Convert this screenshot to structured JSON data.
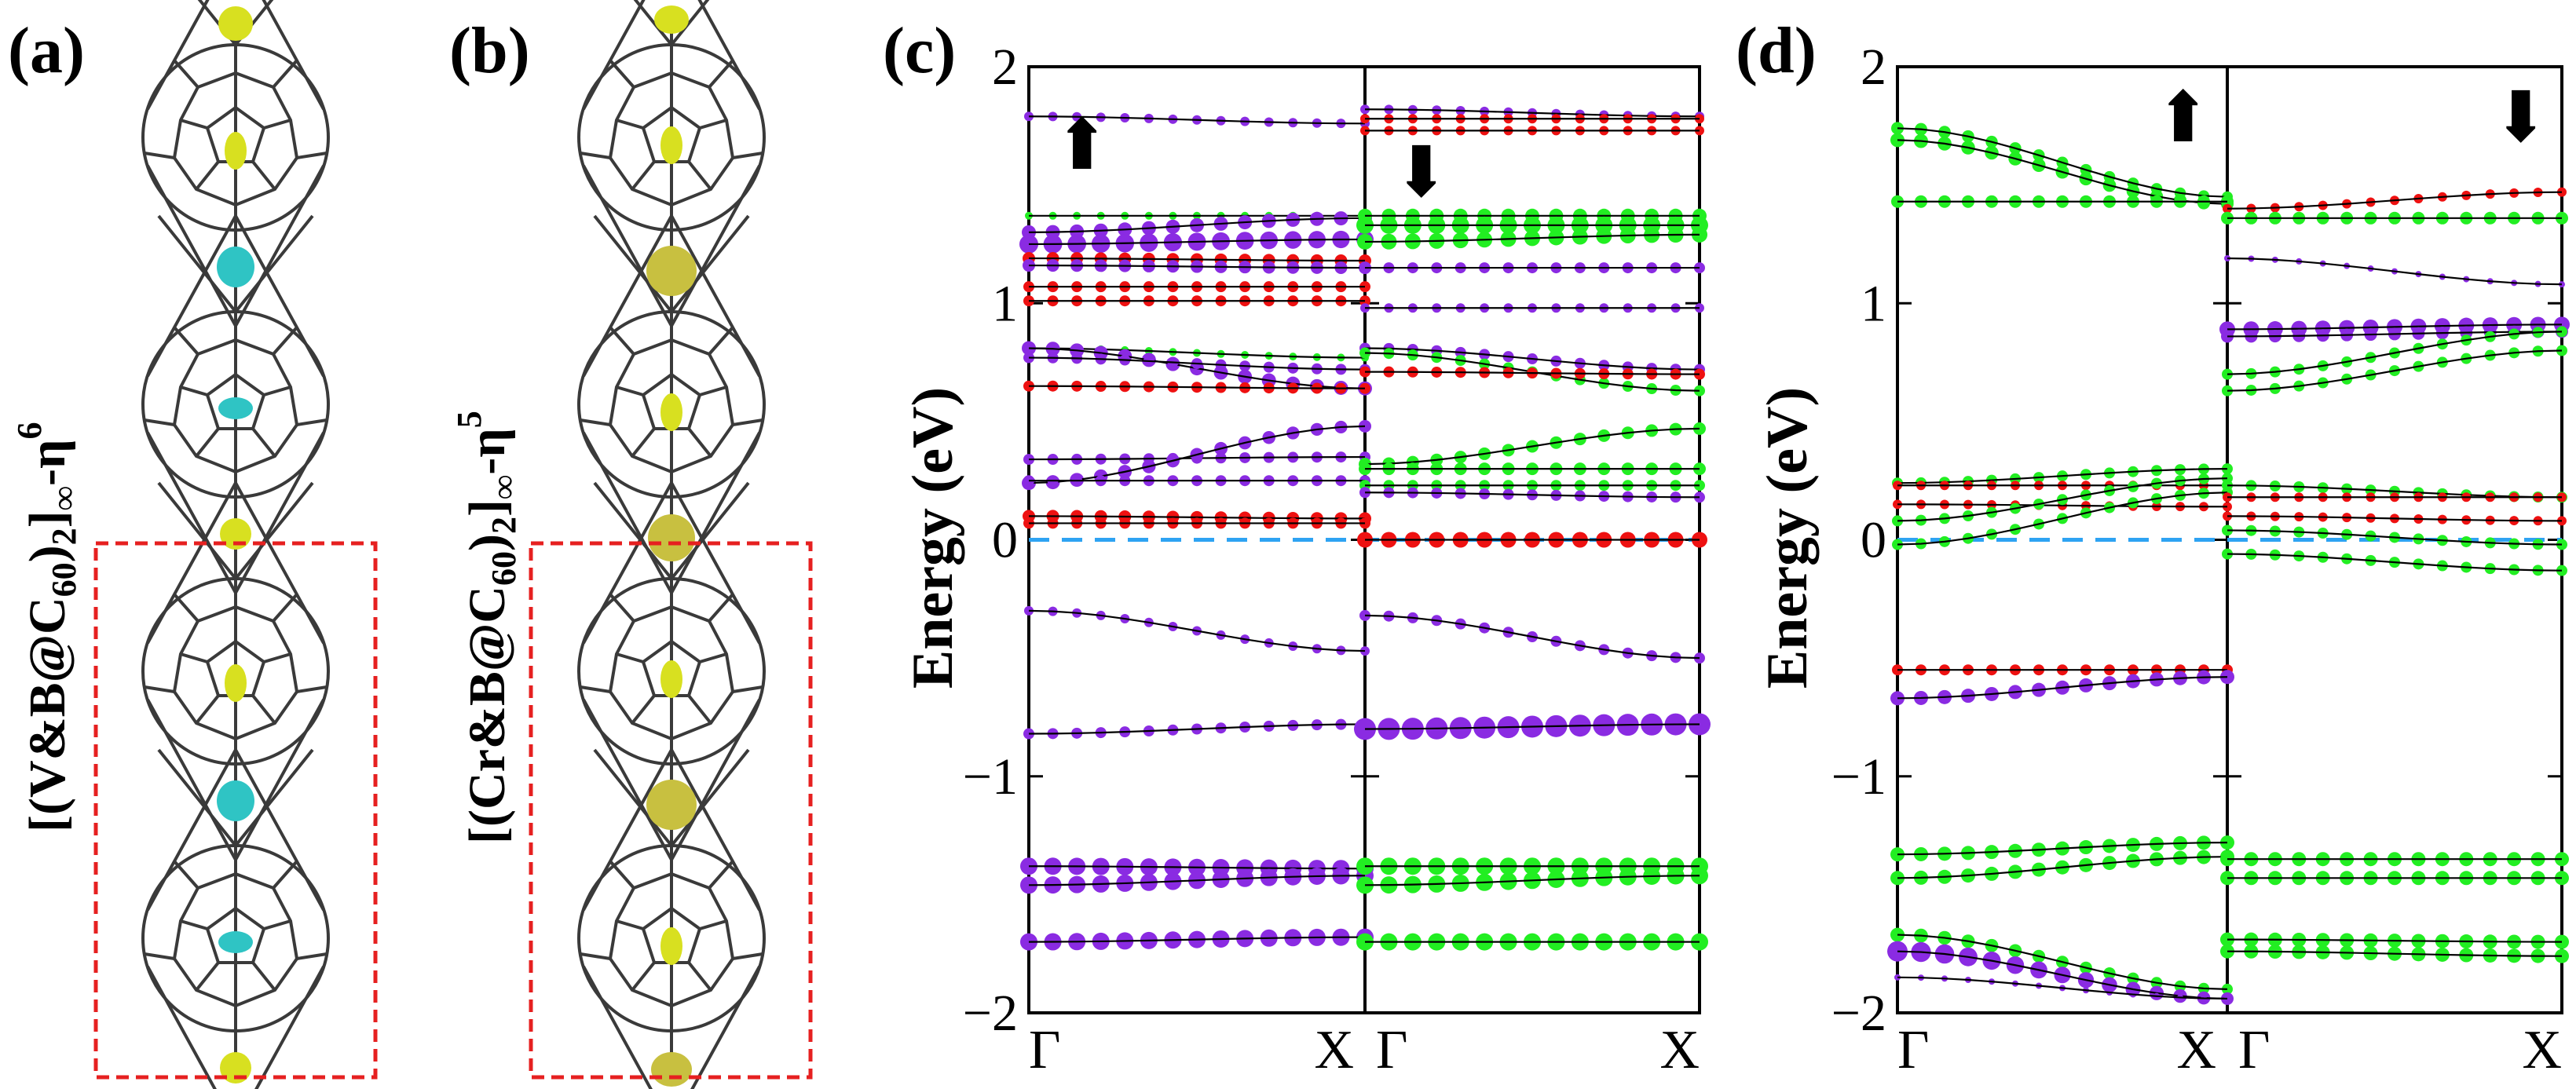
{
  "panels": {
    "a": {
      "label": "(a)",
      "formula_main": "[(V&B@C",
      "formula_sub": "60",
      "formula_close": ")",
      "formula_sub2": "2",
      "formula_end": "]",
      "formula_inf": "∞",
      "formula_eta": "-η",
      "formula_sup": "6"
    },
    "b": {
      "label": "(b)",
      "formula_main": "[(Cr&B@C",
      "formula_sub": "60",
      "formula_close": ")",
      "formula_sub2": "2",
      "formula_end": "]",
      "formula_inf": "∞",
      "formula_eta": "-η",
      "formula_sup": "5"
    },
    "c": {
      "label": "(c)",
      "spin_up": "⬆",
      "spin_down": "⬇"
    },
    "d": {
      "label": "(d)",
      "spin_up": "⬆",
      "spin_down": "⬇"
    }
  },
  "colors": {
    "purple": "#8a2be2",
    "green": "#22ee22",
    "red": "#ee1111",
    "fermi": "#2ea3f2",
    "cyan": "#2fc4c4",
    "yellow": "#d8e020",
    "box": "#e62020"
  },
  "chart_data": [
    {
      "type": "line",
      "panel": "c",
      "ylabel": "Energy (eV)",
      "xlabel": "",
      "ylim": [
        -2,
        2
      ],
      "yticks": [
        -2,
        -1,
        0,
        1,
        2
      ],
      "ytick_labels": [
        "−2",
        "−1",
        "0",
        "1",
        "2"
      ],
      "kpoint_labels": [
        "Γ",
        "X",
        "Γ",
        "X"
      ],
      "fermi_level": 0,
      "subpanels": [
        {
          "spin": "up",
          "bands": [
            {
              "y": [
                1.79,
                1.76
              ],
              "color": "purple",
              "w": [
                6,
                6
              ]
            },
            {
              "y": [
                1.37,
                1.37
              ],
              "color": "green",
              "w": [
                5,
                5
              ]
            },
            {
              "y": [
                1.3,
                1.36
              ],
              "color": "purple",
              "w": [
                9,
                9
              ]
            },
            {
              "y": [
                1.25,
                1.27
              ],
              "color": "purple",
              "w": [
                12,
                11
              ]
            },
            {
              "y": [
                1.19,
                1.18
              ],
              "color": "red",
              "w": [
                8,
                8
              ]
            },
            {
              "y": [
                1.16,
                1.15
              ],
              "color": "purple",
              "w": [
                8,
                8
              ]
            },
            {
              "y": [
                1.07,
                1.07
              ],
              "color": "red",
              "w": [
                7,
                7
              ]
            },
            {
              "y": [
                1.01,
                1.01
              ],
              "color": "red",
              "w": [
                7,
                7
              ]
            },
            {
              "y": [
                0.81,
                0.77
              ],
              "color": "green",
              "w": [
                5,
                5
              ]
            },
            {
              "y": [
                0.81,
                0.64
              ],
              "color": "purple",
              "w": [
                9,
                9
              ]
            },
            {
              "y": [
                0.77,
                0.72
              ],
              "color": "purple",
              "w": [
                7,
                7
              ]
            },
            {
              "y": [
                0.65,
                0.64
              ],
              "color": "red",
              "w": [
                7,
                7
              ]
            },
            {
              "y": [
                0.34,
                0.35
              ],
              "color": "purple",
              "w": [
                7,
                7
              ]
            },
            {
              "y": [
                0.24,
                0.48
              ],
              "color": "purple",
              "w": [
                9,
                8
              ]
            },
            {
              "y": [
                0.25,
                0.25
              ],
              "color": "purple",
              "w": [
                7,
                7
              ]
            },
            {
              "y": [
                0.1,
                0.09
              ],
              "color": "red",
              "w": [
                8,
                8
              ]
            },
            {
              "y": [
                0.07,
                0.07
              ],
              "color": "red",
              "w": [
                7,
                7
              ]
            },
            {
              "y": [
                -0.3,
                -0.47
              ],
              "color": "purple",
              "w": [
                6,
                6
              ]
            },
            {
              "y": [
                -0.82,
                -0.78
              ],
              "color": "purple",
              "w": [
                7,
                7
              ]
            },
            {
              "y": [
                -1.38,
                -1.39
              ],
              "color": "purple",
              "w": [
                11,
                11
              ]
            },
            {
              "y": [
                -1.46,
                -1.42
              ],
              "color": "purple",
              "w": [
                11,
                11
              ]
            },
            {
              "y": [
                -1.7,
                -1.68
              ],
              "color": "purple",
              "w": [
                11,
                11
              ]
            }
          ]
        },
        {
          "spin": "down",
          "bands": [
            {
              "y": [
                1.82,
                1.79
              ],
              "color": "purple",
              "w": [
                6,
                6
              ]
            },
            {
              "y": [
                1.78,
                1.78
              ],
              "color": "red",
              "w": [
                6,
                6
              ]
            },
            {
              "y": [
                1.73,
                1.73
              ],
              "color": "red",
              "w": [
                6,
                6
              ]
            },
            {
              "y": [
                1.37,
                1.37
              ],
              "color": "green",
              "w": [
                9,
                9
              ]
            },
            {
              "y": [
                1.33,
                1.33
              ],
              "color": "green",
              "w": [
                11,
                11
              ]
            },
            {
              "y": [
                1.26,
                1.29
              ],
              "color": "green",
              "w": [
                10,
                10
              ]
            },
            {
              "y": [
                1.15,
                1.15
              ],
              "color": "purple",
              "w": [
                7,
                7
              ]
            },
            {
              "y": [
                0.98,
                0.98
              ],
              "color": "purple",
              "w": [
                6,
                6
              ]
            },
            {
              "y": [
                0.81,
                0.72
              ],
              "color": "purple",
              "w": [
                7,
                7
              ]
            },
            {
              "y": [
                0.79,
                0.63
              ],
              "color": "green",
              "w": [
                7,
                7
              ]
            },
            {
              "y": [
                0.71,
                0.7
              ],
              "color": "red",
              "w": [
                7,
                7
              ]
            },
            {
              "y": [
                0.32,
                0.47
              ],
              "color": "green",
              "w": [
                8,
                8
              ]
            },
            {
              "y": [
                0.3,
                0.3
              ],
              "color": "green",
              "w": [
                8,
                8
              ]
            },
            {
              "y": [
                0.23,
                0.23
              ],
              "color": "green",
              "w": [
                7,
                7
              ]
            },
            {
              "y": [
                0.2,
                0.18
              ],
              "color": "purple",
              "w": [
                7,
                7
              ]
            },
            {
              "y": [
                0.0,
                0.0
              ],
              "color": "red",
              "w": [
                10,
                10
              ]
            },
            {
              "y": [
                -0.32,
                -0.5
              ],
              "color": "purple",
              "w": [
                7,
                7
              ]
            },
            {
              "y": [
                -0.8,
                -0.78
              ],
              "color": "purple",
              "w": [
                14,
                14
              ]
            },
            {
              "y": [
                -1.38,
                -1.38
              ],
              "color": "green",
              "w": [
                11,
                11
              ]
            },
            {
              "y": [
                -1.46,
                -1.42
              ],
              "color": "green",
              "w": [
                11,
                11
              ]
            },
            {
              "y": [
                -1.7,
                -1.7
              ],
              "color": "green",
              "w": [
                11,
                11
              ]
            }
          ]
        }
      ]
    },
    {
      "type": "line",
      "panel": "d",
      "ylabel": "Energy (eV)",
      "xlabel": "",
      "ylim": [
        -2,
        2
      ],
      "yticks": [
        -2,
        -1,
        0,
        1,
        2
      ],
      "ytick_labels": [
        "−2",
        "−1",
        "0",
        "1",
        "2"
      ],
      "kpoint_labels": [
        "Γ",
        "X",
        "Γ",
        "X"
      ],
      "fermi_level": 0,
      "subpanels": [
        {
          "spin": "up",
          "bands": [
            {
              "y": [
                1.74,
                1.45
              ],
              "color": "green",
              "w": [
                8,
                7
              ]
            },
            {
              "y": [
                1.69,
                1.42
              ],
              "color": "green",
              "w": [
                9,
                8
              ]
            },
            {
              "y": [
                1.43,
                1.43
              ],
              "color": "green",
              "w": [
                8,
                8
              ]
            },
            {
              "y": [
                0.24,
                0.3
              ],
              "color": "green",
              "w": [
                7,
                7
              ]
            },
            {
              "y": [
                0.23,
                0.23
              ],
              "color": "red",
              "w": [
                6,
                6
              ]
            },
            {
              "y": [
                0.15,
                0.14
              ],
              "color": "red",
              "w": [
                6,
                6
              ]
            },
            {
              "y": [
                0.08,
                0.26
              ],
              "color": "green",
              "w": [
                7,
                7
              ]
            },
            {
              "y": [
                -0.02,
                0.2
              ],
              "color": "green",
              "w": [
                7,
                7
              ]
            },
            {
              "y": [
                -0.55,
                -0.55
              ],
              "color": "red",
              "w": [
                7,
                7
              ]
            },
            {
              "y": [
                -0.67,
                -0.58
              ],
              "color": "purple",
              "w": [
                9,
                9
              ]
            },
            {
              "y": [
                -1.33,
                -1.28
              ],
              "color": "green",
              "w": [
                9,
                9
              ]
            },
            {
              "y": [
                -1.43,
                -1.34
              ],
              "color": "green",
              "w": [
                9,
                9
              ]
            },
            {
              "y": [
                -1.67,
                -1.9
              ],
              "color": "green",
              "w": [
                9,
                7
              ]
            },
            {
              "y": [
                -1.74,
                -1.94
              ],
              "color": "purple",
              "w": [
                13,
                8
              ]
            },
            {
              "y": [
                -1.85,
                -1.94
              ],
              "color": "purple",
              "w": [
                4,
                4
              ]
            }
          ]
        },
        {
          "spin": "down",
          "bands": [
            {
              "y": [
                1.4,
                1.47
              ],
              "color": "red",
              "w": [
                6,
                6
              ]
            },
            {
              "y": [
                1.36,
                1.36
              ],
              "color": "green",
              "w": [
                8,
                8
              ]
            },
            {
              "y": [
                1.19,
                1.08
              ],
              "color": "purple",
              "w": [
                4,
                4
              ]
            },
            {
              "y": [
                0.89,
                0.91
              ],
              "color": "purple",
              "w": [
                10,
                10
              ]
            },
            {
              "y": [
                0.86,
                0.88
              ],
              "color": "purple",
              "w": [
                8,
                8
              ]
            },
            {
              "y": [
                0.7,
                0.88
              ],
              "color": "green",
              "w": [
                7,
                7
              ]
            },
            {
              "y": [
                0.63,
                0.8
              ],
              "color": "green",
              "w": [
                7,
                7
              ]
            },
            {
              "y": [
                0.23,
                0.18
              ],
              "color": "green",
              "w": [
                7,
                7
              ]
            },
            {
              "y": [
                0.18,
                0.18
              ],
              "color": "red",
              "w": [
                6,
                6
              ]
            },
            {
              "y": [
                0.1,
                0.08
              ],
              "color": "red",
              "w": [
                6,
                6
              ]
            },
            {
              "y": [
                0.04,
                -0.02
              ],
              "color": "green",
              "w": [
                7,
                7
              ]
            },
            {
              "y": [
                -0.06,
                -0.13
              ],
              "color": "green",
              "w": [
                7,
                7
              ]
            },
            {
              "y": [
                -1.35,
                -1.35
              ],
              "color": "green",
              "w": [
                9,
                9
              ]
            },
            {
              "y": [
                -1.43,
                -1.43
              ],
              "color": "green",
              "w": [
                9,
                9
              ]
            },
            {
              "y": [
                -1.69,
                -1.7
              ],
              "color": "green",
              "w": [
                9,
                9
              ]
            },
            {
              "y": [
                -1.74,
                -1.76
              ],
              "color": "green",
              "w": [
                9,
                9
              ]
            }
          ]
        }
      ]
    }
  ]
}
